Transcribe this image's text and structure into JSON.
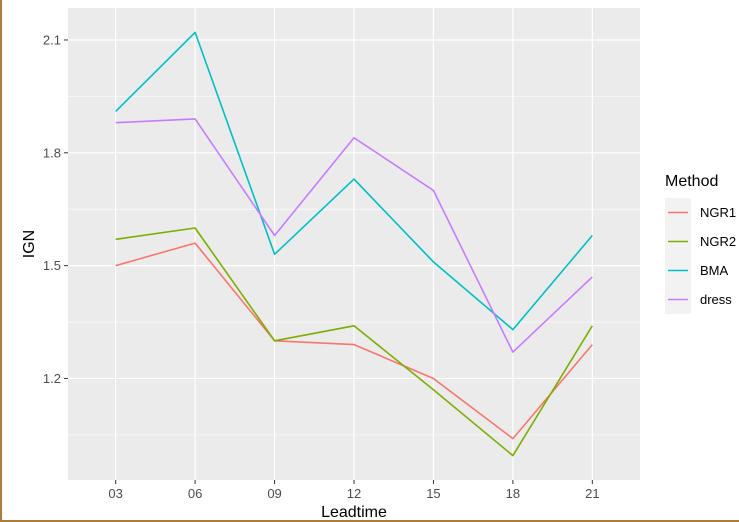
{
  "chart_data": {
    "type": "line",
    "xlabel": "Leadtime",
    "ylabel": "IGN",
    "categories": [
      "03",
      "06",
      "09",
      "12",
      "15",
      "18",
      "21"
    ],
    "yticks": [
      "1.2",
      "1.5",
      "1.8",
      "2.1"
    ],
    "ylim": [
      0.93,
      2.185
    ],
    "grid": true,
    "legend": {
      "title": "Method",
      "placement": "right"
    },
    "series": [
      {
        "name": "NGR1",
        "color": "#F8766D",
        "values": [
          1.5,
          1.56,
          1.3,
          1.29,
          1.2,
          1.04,
          1.29
        ]
      },
      {
        "name": "NGR2",
        "color": "#7CAE00",
        "values": [
          1.57,
          1.6,
          1.3,
          1.34,
          1.17,
          0.995,
          1.34
        ]
      },
      {
        "name": "BMA",
        "color": "#00BFC4",
        "values": [
          1.91,
          2.12,
          1.53,
          1.73,
          1.51,
          1.33,
          1.58
        ]
      },
      {
        "name": "dress",
        "color": "#C77CFF",
        "values": [
          1.88,
          1.89,
          1.58,
          1.84,
          1.7,
          1.27,
          1.47
        ]
      }
    ]
  }
}
